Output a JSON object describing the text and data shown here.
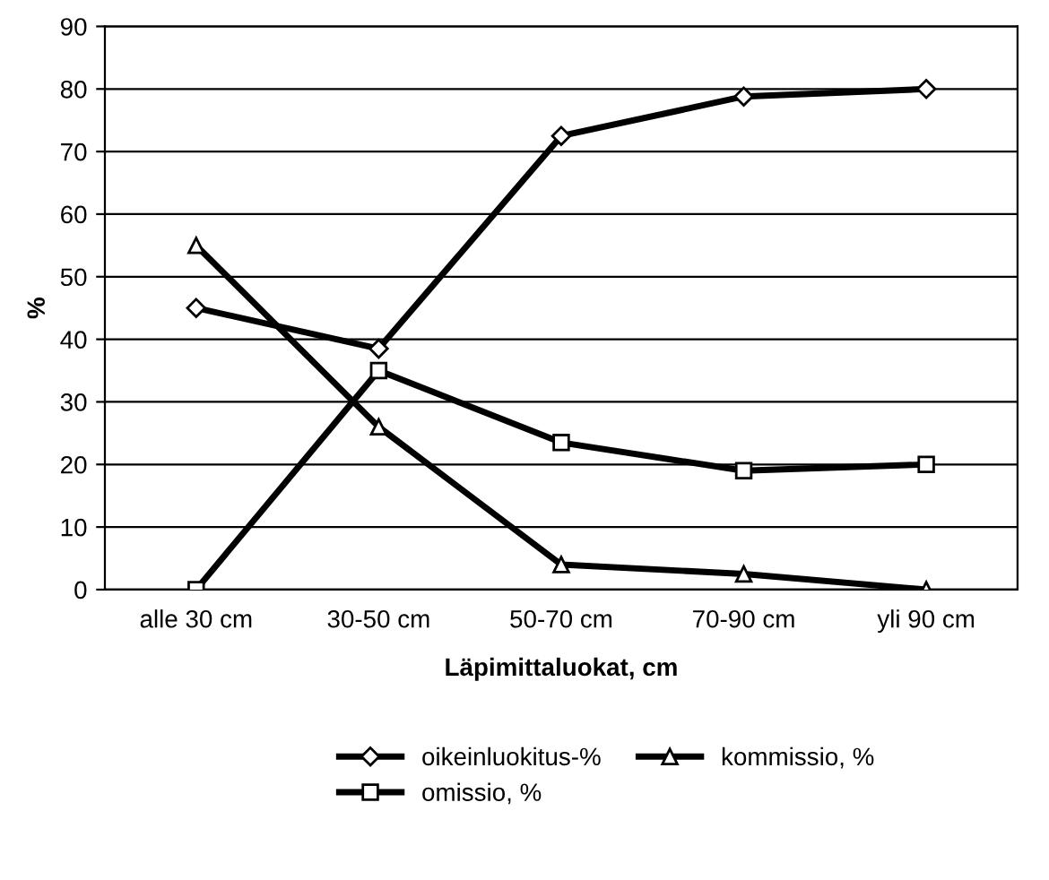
{
  "chart_data": {
    "type": "line",
    "xlabel": "Läpimittaluokat, cm",
    "ylabel": "%",
    "categories": [
      "alle 30 cm",
      "30-50 cm",
      "50-70 cm",
      "70-90 cm",
      "yli 90 cm"
    ],
    "series": [
      {
        "name": "oikeinluokitus-%",
        "color": "#000000",
        "marker": "diamond",
        "values": [
          45,
          38.5,
          72.5,
          78.8,
          80
        ]
      },
      {
        "name": "omissio, %",
        "color": "#000000",
        "marker": "square",
        "values": [
          0,
          35,
          23.5,
          19,
          20
        ]
      },
      {
        "name": "kommissio, %",
        "color": "#000000",
        "marker": "triangle",
        "values": [
          55,
          26,
          4,
          2.5,
          0
        ]
      }
    ],
    "ylim": [
      0,
      90
    ],
    "yticks": [
      0,
      10,
      20,
      30,
      40,
      50,
      60,
      70,
      80,
      90
    ],
    "grid": "y",
    "legend": "bottom",
    "line_style": "solid"
  }
}
